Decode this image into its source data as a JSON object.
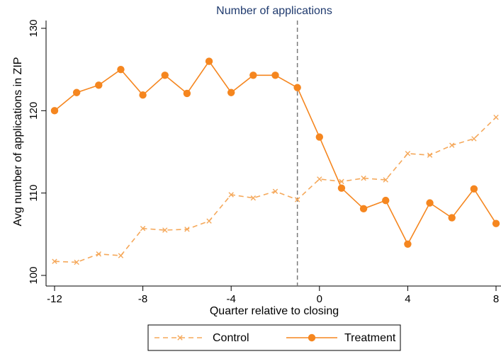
{
  "chart_data": {
    "type": "line",
    "title": "Number of applications",
    "xlabel": "Quarter relative to closing",
    "ylabel": "Avg number of applications in ZIP",
    "xlim": [
      -12,
      8
    ],
    "ylim": [
      100,
      130
    ],
    "x_ticks": [
      -12,
      -8,
      -4,
      0,
      4,
      8
    ],
    "y_ticks": [
      100,
      110,
      120,
      130
    ],
    "x_tick_labels": [
      "-12",
      "-8",
      "-4",
      "0",
      "4",
      "8"
    ],
    "y_tick_labels": [
      "100",
      "110",
      "120",
      "130"
    ],
    "vline_x": -1,
    "grid": false,
    "legend_position": "bottom",
    "x": [
      -12,
      -11,
      -10,
      -9,
      -8,
      -7,
      -6,
      -5,
      -4,
      -3,
      -2,
      -1,
      0,
      1,
      2,
      3,
      4,
      5,
      6,
      7,
      8
    ],
    "series": [
      {
        "name": "Control",
        "style": "dashed",
        "marker": "x",
        "color": "#f5a85a",
        "values": [
          101.7,
          101.6,
          102.6,
          102.4,
          105.7,
          105.5,
          105.6,
          106.6,
          109.8,
          109.4,
          110.2,
          109.2,
          111.7,
          111.4,
          111.8,
          111.6,
          114.8,
          114.6,
          115.8,
          116.6,
          119.2
        ]
      },
      {
        "name": "Treatment",
        "style": "solid",
        "marker": "circle",
        "color": "#f5861f",
        "values": [
          120.0,
          122.2,
          123.1,
          125.0,
          121.9,
          124.3,
          122.1,
          126.0,
          122.2,
          124.3,
          124.3,
          122.8,
          116.8,
          110.6,
          108.1,
          109.1,
          103.8,
          108.8,
          107.0,
          110.5,
          106.3
        ]
      }
    ]
  }
}
